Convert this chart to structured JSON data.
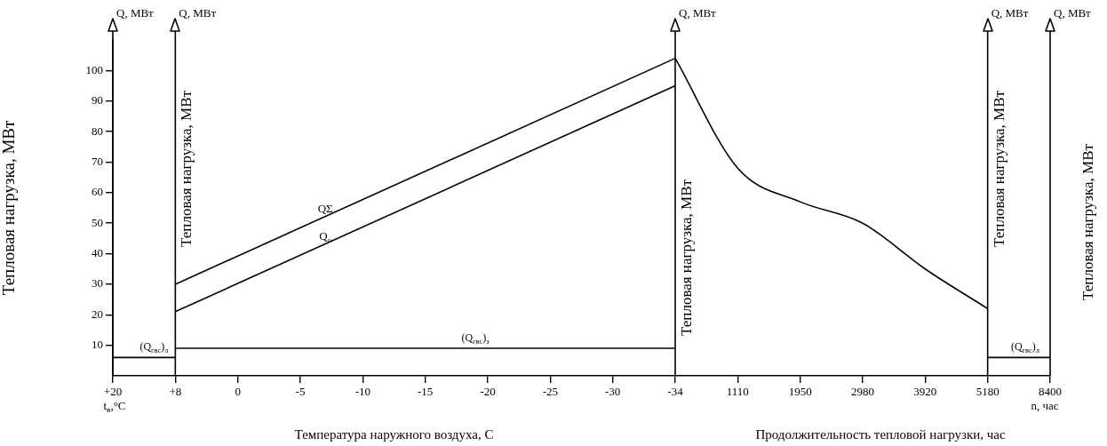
{
  "chart_data": {
    "type": "line",
    "categories": [
      "+20",
      "+8",
      "0",
      "-5",
      "-10",
      "-15",
      "-20",
      "-25",
      "-30",
      "-34",
      "1110",
      "1950",
      "2980",
      "3920",
      "5180",
      "8400"
    ],
    "ylabel": "Тепловая нагрузка, МВт",
    "xlabel": "Температура наружного воздуха, С",
    "ylim": [
      0,
      110
    ],
    "yticks": [
      10,
      20,
      30,
      40,
      50,
      60,
      70,
      80,
      90,
      100
    ],
    "grid": false,
    "legend": false,
    "marker": "none",
    "line_style": "solid",
    "series": [
      {
        "name": "QΣ",
        "color": "#000000",
        "values": [
          null,
          30,
          null,
          null,
          null,
          null,
          null,
          null,
          null,
          104,
          null,
          null,
          null,
          null,
          null,
          null
        ]
      },
      {
        "name": "Q$_{о}$",
        "color": "#000000",
        "values": [
          null,
          21,
          null,
          null,
          null,
          null,
          null,
          null,
          null,
          95,
          null,
          null,
          null,
          null,
          null,
          null
        ]
      },
      {
        "color": "#000000",
        "values": [
          6,
          6,
          null,
          null,
          null,
          null,
          null,
          null,
          null,
          null,
          null,
          null,
          null,
          null,
          null,
          null
        ]
      },
      {
        "name": "(Q$_{гвс}$)$_{з}$",
        "color": "#000000",
        "values": [
          null,
          9,
          null,
          null,
          null,
          null,
          null,
          null,
          null,
          9,
          null,
          null,
          null,
          null,
          null,
          null
        ]
      },
      {
        "color": "#000000",
        "values": [
          null,
          null,
          null,
          null,
          null,
          null,
          null,
          null,
          null,
          104,
          68,
          57,
          50,
          35,
          22,
          null
        ]
      },
      {
        "name": "(Q$_{гвс}$)$_{л}$",
        "color": "#000000",
        "values": [
          null,
          null,
          null,
          null,
          null,
          null,
          null,
          null,
          null,
          null,
          null,
          null,
          null,
          null,
          6,
          6
        ]
      }
    ],
    "ref_lines": [
      {
        "axis": "x",
        "value": "+20",
        "label": "Q, МВт"
      },
      {
        "axis": "x",
        "value": "+8",
        "label": "Q, МВт"
      },
      {
        "axis": "x",
        "value": "-34",
        "label": "Q, МВт"
      },
      {
        "axis": "x",
        "value": "5180",
        "label": "Q, МВт"
      },
      {
        "axis": "x",
        "value": "8400",
        "label": "Q, МВт"
      }
    ],
    "annotations": [
      "Тепловая нагрузка, МВт",
      "Тепловая нагрузка, МВт",
      "Тепловая нагрузка, МВт",
      "Тепловая нагрузка, МВт",
      "t$_{в}$,°C",
      "n, час",
      "Продолжительность тепловой нагрузки, час",
      {
        "text": "(Q$_{гвс}$)$_{л}$",
        "x": "+8",
        "y": 6
      }
    ]
  }
}
